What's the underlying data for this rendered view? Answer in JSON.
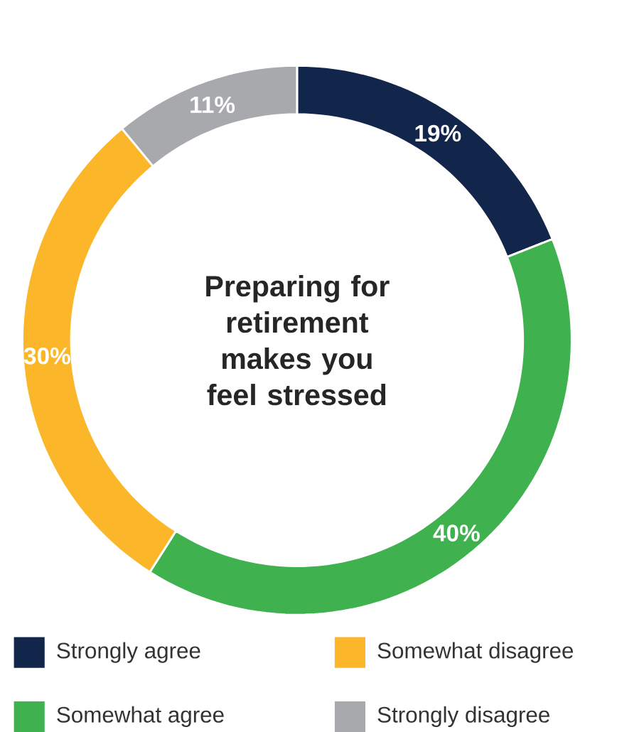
{
  "chart_data": {
    "type": "donut",
    "title": "Preparing for retirement makes you feel stressed",
    "categories": [
      "Strongly agree",
      "Somewhat agree",
      "Somewhat disagree",
      "Strongly disagree"
    ],
    "values": [
      19,
      40,
      30,
      11
    ],
    "colors": [
      "#11264a",
      "#3fb14e",
      "#fbb62a",
      "#a8a9ad"
    ],
    "value_labels": [
      "19%",
      "40%",
      "30%",
      "11%"
    ],
    "legend": "bottom"
  }
}
